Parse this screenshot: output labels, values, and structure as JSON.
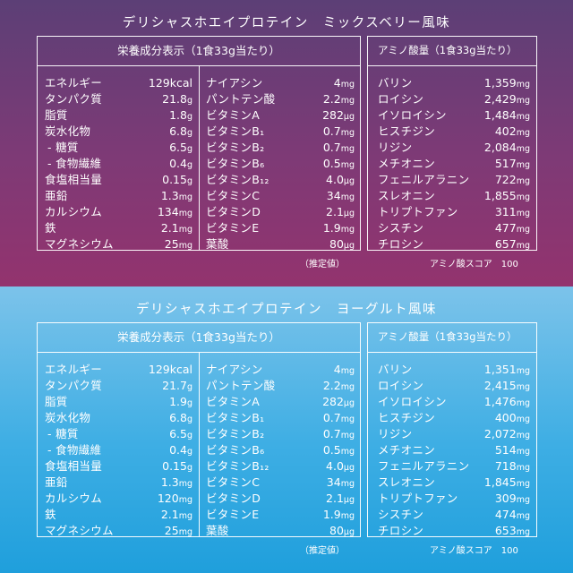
{
  "sections": [
    {
      "title": "デリシャスホエイプロテイン　ミックスベリー風味",
      "nutrition_header": "栄養成分表示（1食33g当たり）",
      "amino_header": "アミノ酸量（1食33g当たり）",
      "estimate_note": "（推定値）",
      "amino_score": "アミノ酸スコア　100",
      "nutrition_col1": [
        {
          "name": "エネルギー",
          "value": "129kcal",
          "unit": ""
        },
        {
          "name": "タンパク質",
          "value": "21.8",
          "unit": "g"
        },
        {
          "name": "脂質",
          "value": "1.8",
          "unit": "g"
        },
        {
          "name": "炭水化物",
          "value": "6.8",
          "unit": "g"
        },
        {
          "name": "- 糖質",
          "value": "6.5",
          "unit": "g"
        },
        {
          "name": "- 食物繊維",
          "value": "0.4",
          "unit": "g"
        },
        {
          "name": "食塩相当量",
          "value": "0.15",
          "unit": "g"
        },
        {
          "name": "亜鉛",
          "value": "1.3",
          "unit": "mg"
        },
        {
          "name": "カルシウム",
          "value": "134",
          "unit": "mg"
        },
        {
          "name": "鉄",
          "value": "2.1",
          "unit": "mg"
        },
        {
          "name": "マグネシウム",
          "value": "25",
          "unit": "mg"
        }
      ],
      "nutrition_col2": [
        {
          "name": "ナイアシン",
          "value": "4",
          "unit": "mg"
        },
        {
          "name": "パントテン酸",
          "value": "2.2",
          "unit": "mg"
        },
        {
          "name": "ビタミンA",
          "value": "282",
          "unit": "μg"
        },
        {
          "name": "ビタミンB₁",
          "value": "0.7",
          "unit": "mg"
        },
        {
          "name": "ビタミンB₂",
          "value": "0.7",
          "unit": "mg"
        },
        {
          "name": "ビタミンB₆",
          "value": "0.5",
          "unit": "mg"
        },
        {
          "name": "ビタミンB₁₂",
          "value": "4.0",
          "unit": "μg"
        },
        {
          "name": "ビタミンC",
          "value": "34",
          "unit": "mg"
        },
        {
          "name": "ビタミンD",
          "value": "2.1",
          "unit": "μg"
        },
        {
          "name": "ビタミンE",
          "value": "1.9",
          "unit": "mg"
        },
        {
          "name": "葉酸",
          "value": "80",
          "unit": "μg"
        }
      ],
      "amino": [
        {
          "name": "バリン",
          "value": "1,359",
          "unit": "mg"
        },
        {
          "name": "ロイシン",
          "value": "2,429",
          "unit": "mg"
        },
        {
          "name": "イソロイシン",
          "value": "1,484",
          "unit": "mg"
        },
        {
          "name": "ヒスチジン",
          "value": "402",
          "unit": "mg"
        },
        {
          "name": "リジン",
          "value": "2,084",
          "unit": "mg"
        },
        {
          "name": "メチオニン",
          "value": "517",
          "unit": "mg"
        },
        {
          "name": "フェニルアラニン",
          "value": "722",
          "unit": "mg"
        },
        {
          "name": "スレオニン",
          "value": "1,855",
          "unit": "mg"
        },
        {
          "name": "トリプトファン",
          "value": "311",
          "unit": "mg"
        },
        {
          "name": "シスチン",
          "value": "477",
          "unit": "mg"
        },
        {
          "name": "チロシン",
          "value": "657",
          "unit": "mg"
        }
      ]
    },
    {
      "title": "デリシャスホエイプロテイン　ヨーグルト風味",
      "nutrition_header": "栄養成分表示（1食33g当たり）",
      "amino_header": "アミノ酸量（1食33g当たり）",
      "estimate_note": "（推定値）",
      "amino_score": "アミノ酸スコア　100",
      "nutrition_col1": [
        {
          "name": "エネルギー",
          "value": "129kcal",
          "unit": ""
        },
        {
          "name": "タンパク質",
          "value": "21.7",
          "unit": "g"
        },
        {
          "name": "脂質",
          "value": "1.9",
          "unit": "g"
        },
        {
          "name": "炭水化物",
          "value": "6.8",
          "unit": "g"
        },
        {
          "name": "- 糖質",
          "value": "6.5",
          "unit": "g"
        },
        {
          "name": "- 食物繊維",
          "value": "0.4",
          "unit": "g"
        },
        {
          "name": "食塩相当量",
          "value": "0.15",
          "unit": "g"
        },
        {
          "name": "亜鉛",
          "value": "1.3",
          "unit": "mg"
        },
        {
          "name": "カルシウム",
          "value": "120",
          "unit": "mg"
        },
        {
          "name": "鉄",
          "value": "2.1",
          "unit": "mg"
        },
        {
          "name": "マグネシウム",
          "value": "25",
          "unit": "mg"
        }
      ],
      "nutrition_col2": [
        {
          "name": "ナイアシン",
          "value": "4",
          "unit": "mg"
        },
        {
          "name": "パントテン酸",
          "value": "2.2",
          "unit": "mg"
        },
        {
          "name": "ビタミンA",
          "value": "282",
          "unit": "μg"
        },
        {
          "name": "ビタミンB₁",
          "value": "0.7",
          "unit": "mg"
        },
        {
          "name": "ビタミンB₂",
          "value": "0.7",
          "unit": "mg"
        },
        {
          "name": "ビタミンB₆",
          "value": "0.5",
          "unit": "mg"
        },
        {
          "name": "ビタミンB₁₂",
          "value": "4.0",
          "unit": "μg"
        },
        {
          "name": "ビタミンC",
          "value": "34",
          "unit": "mg"
        },
        {
          "name": "ビタミンD",
          "value": "2.1",
          "unit": "μg"
        },
        {
          "name": "ビタミンE",
          "value": "1.9",
          "unit": "mg"
        },
        {
          "name": "葉酸",
          "value": "80",
          "unit": "μg"
        }
      ],
      "amino": [
        {
          "name": "バリン",
          "value": "1,351",
          "unit": "mg"
        },
        {
          "name": "ロイシン",
          "value": "2,415",
          "unit": "mg"
        },
        {
          "name": "イソロイシン",
          "value": "1,476",
          "unit": "mg"
        },
        {
          "name": "ヒスチジン",
          "value": "400",
          "unit": "mg"
        },
        {
          "name": "リジン",
          "value": "2,072",
          "unit": "mg"
        },
        {
          "name": "メチオニン",
          "value": "514",
          "unit": "mg"
        },
        {
          "name": "フェニルアラニン",
          "value": "718",
          "unit": "mg"
        },
        {
          "name": "スレオニン",
          "value": "1,845",
          "unit": "mg"
        },
        {
          "name": "トリプトファン",
          "value": "309",
          "unit": "mg"
        },
        {
          "name": "シスチン",
          "value": "474",
          "unit": "mg"
        },
        {
          "name": "チロシン",
          "value": "653",
          "unit": "mg"
        }
      ]
    }
  ]
}
